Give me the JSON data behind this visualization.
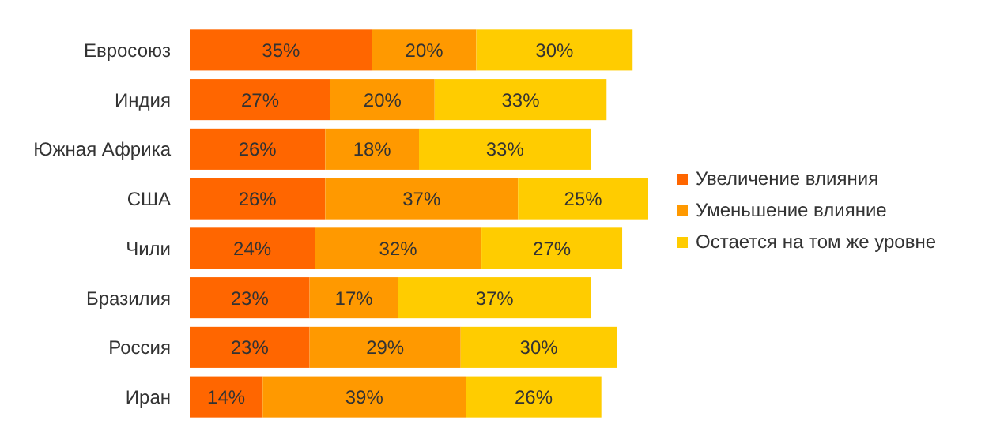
{
  "chart_data": {
    "type": "bar",
    "orientation": "horizontal",
    "stacked": true,
    "legend": "right",
    "categories": [
      "Евросоюз",
      "Индия",
      "Южная Африка",
      "США",
      "Чили",
      "Бразилия",
      "Россия",
      "Иран"
    ],
    "series": [
      {
        "name": "Увеличение влияния",
        "color": "#ff6600",
        "values": [
          35,
          27,
          26,
          26,
          24,
          23,
          23,
          14
        ],
        "value_labels": [
          "35%",
          "27%",
          "26%",
          "26%",
          "24%",
          "23%",
          "23%",
          "14%"
        ]
      },
      {
        "name": "Уменьшение влияние",
        "color": "#ff9900",
        "values": [
          20,
          20,
          18,
          37,
          32,
          17,
          29,
          39
        ],
        "value_labels": [
          "20%",
          "20%",
          "18%",
          "37%",
          "32%",
          "17%",
          "29%",
          "39%"
        ]
      },
      {
        "name": "Остается на том же уровне",
        "color": "#ffcc00",
        "values": [
          30,
          33,
          33,
          25,
          27,
          37,
          30,
          26
        ],
        "value_labels": [
          "30%",
          "33%",
          "33%",
          "25%",
          "27%",
          "37%",
          "30%",
          "26%"
        ]
      }
    ]
  }
}
